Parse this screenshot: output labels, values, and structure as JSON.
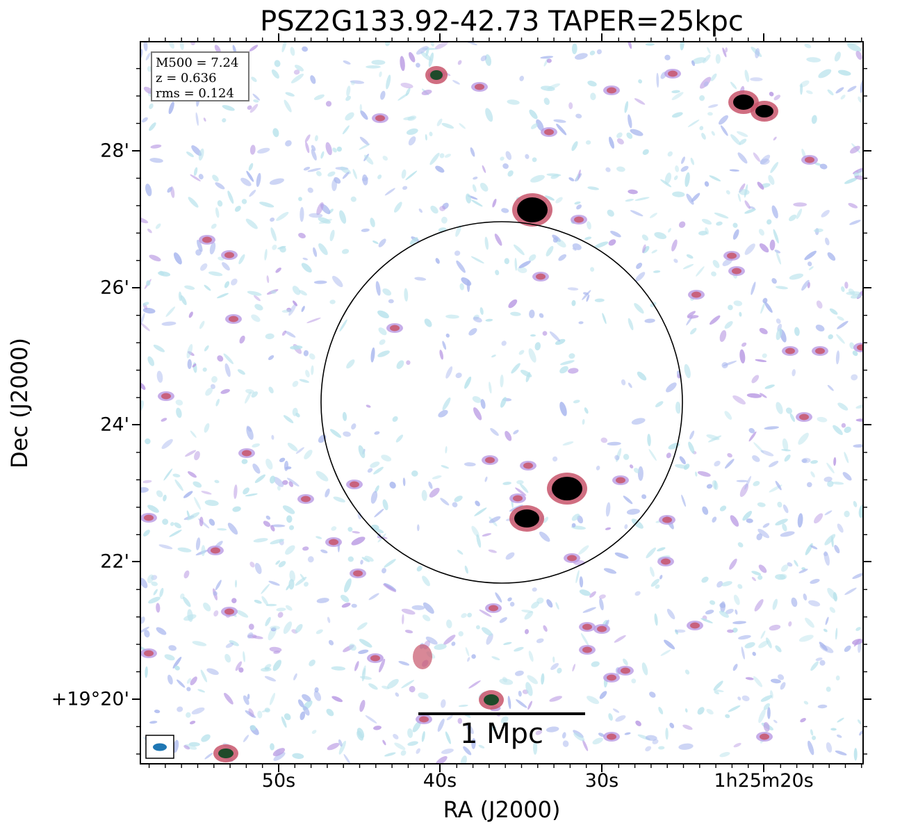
{
  "title": "PSZ2G133.92-42.73 TAPER=25kpc",
  "axes": {
    "xlabel": "RA (J2000)",
    "ylabel": "Dec (J2000)",
    "x_ticks": [
      "50s",
      "40s",
      "30s",
      "1h25m20s"
    ],
    "y_ticks": [
      "28'",
      "26'",
      "24'",
      "22'",
      "+19°20'"
    ]
  },
  "info": {
    "m500": "M500 = 7.24",
    "z": "z = 0.636",
    "rms": "rms = 0.124"
  },
  "scalebar": {
    "label": "1 Mpc"
  },
  "colors": {
    "noise_light": "#b9e3ec",
    "noise_mid": "#a9b7ee",
    "noise_purple": "#b99ae3",
    "source_red": "#c8556b",
    "source_core": "#000000",
    "beam": "#1f77b4",
    "circle": "#000000"
  }
}
